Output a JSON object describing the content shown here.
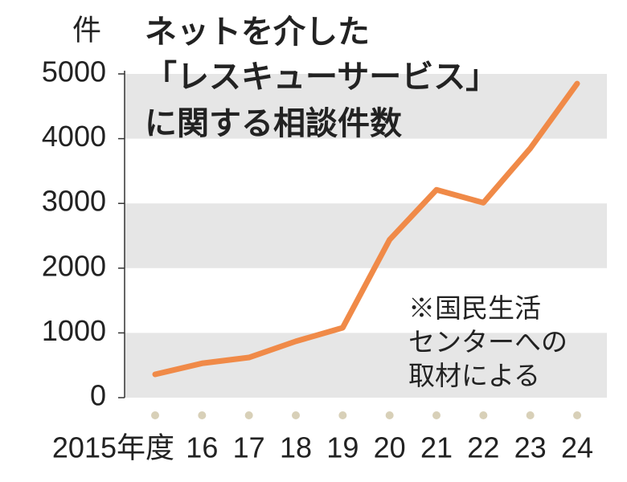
{
  "chart_data": {
    "type": "line",
    "title_lines": [
      "ネットを介した",
      "「レスキューサービス」",
      "に関する相談件数"
    ],
    "y_unit": "件",
    "annotation_lines": [
      "※国民生活",
      "センターへの",
      "取材による"
    ],
    "categories": [
      "2015年度",
      "16",
      "17",
      "18",
      "19",
      "20",
      "21",
      "22",
      "23",
      "24"
    ],
    "values": [
      360,
      530,
      620,
      870,
      1080,
      2440,
      3210,
      3010,
      3850,
      4850
    ],
    "color": "#f08a48",
    "band_color": "#e6e6e6",
    "ylim": [
      0,
      5000
    ],
    "yticks": [
      0,
      1000,
      2000,
      3000,
      4000,
      5000
    ]
  }
}
